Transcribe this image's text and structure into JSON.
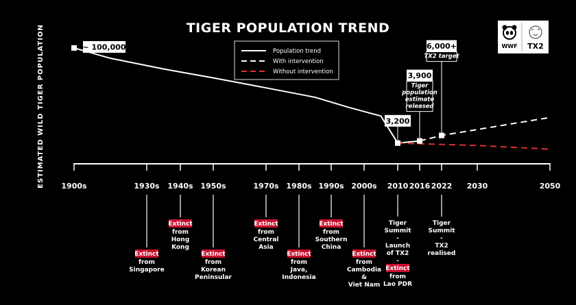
{
  "chart_data": {
    "type": "line",
    "title": "TIGER POPULATION TREND",
    "ylabel": "ESTIMATED WILD TIGER POPULATION",
    "x_ticks": [
      "1900s",
      "1930s",
      "1940s",
      "1950s",
      "1970s",
      "1980s",
      "1990s",
      "2000s",
      "2010",
      "2016",
      "2022",
      "2030",
      "2050"
    ],
    "x_tick_years": [
      1900,
      1930,
      1940,
      1950,
      1970,
      1980,
      1990,
      2000,
      2010,
      2016,
      2022,
      2030,
      2050
    ],
    "series": [
      {
        "name": "Population trend",
        "style": "solid",
        "color": "#ffffff",
        "x": [
          1900,
          1915,
          1935,
          1950,
          1970,
          1985,
          1995,
          2005,
          2010,
          2016
        ],
        "y": [
          100000,
          83000,
          67000,
          55000,
          43000,
          33000,
          24000,
          17000,
          3200,
          3900
        ]
      },
      {
        "name": "With intervention",
        "style": "dashed",
        "color": "#ffffff",
        "x": [
          2016,
          2022,
          2050
        ],
        "y": [
          3900,
          6000,
          16000
        ]
      },
      {
        "name": "Without intervention",
        "style": "dashed",
        "color": "#e03030",
        "x": [
          2010,
          2030,
          2050
        ],
        "y": [
          3200,
          2500,
          1600
        ]
      }
    ],
    "callouts": [
      {
        "label": "~ 100,000",
        "x": 1900,
        "y": 100000
      },
      {
        "label": "3,200",
        "x": 2010,
        "y": 3200
      },
      {
        "label": "3,900",
        "sub": [
          "Tiger",
          "population",
          "estimate",
          "released"
        ],
        "x": 2016,
        "y": 3900
      },
      {
        "label": "6,000+",
        "sub": [
          "TX2 target"
        ],
        "x": 2022,
        "y": 6000
      }
    ],
    "events": [
      {
        "x": 1930,
        "extinct": true,
        "lines": [
          "from",
          "Singapore"
        ]
      },
      {
        "x": 1940,
        "extinct": true,
        "lines": [
          "from",
          "Hong",
          "Kong"
        ]
      },
      {
        "x": 1950,
        "extinct": true,
        "lines": [
          "from",
          "Korean",
          "Peninsular"
        ]
      },
      {
        "x": 1970,
        "extinct": true,
        "lines": [
          "from",
          "Central",
          "Asia"
        ]
      },
      {
        "x": 1980,
        "extinct": true,
        "lines": [
          "from",
          "Java,",
          "Indonesia"
        ]
      },
      {
        "x": 1990,
        "extinct": true,
        "lines": [
          "from",
          "Southern",
          "China"
        ]
      },
      {
        "x": 2000,
        "extinct": true,
        "lines": [
          "from",
          "Cambodia",
          "&",
          "Viet Nam"
        ]
      },
      {
        "x": 2010,
        "extinct": false,
        "lines": [
          "Tiger",
          "Summit",
          "-",
          "Launch",
          "of TX2",
          "-"
        ],
        "extra_extinct": [
          "from",
          "Lao PDR"
        ]
      },
      {
        "x": 2022,
        "extinct": false,
        "lines": [
          "Tiger",
          "Summit",
          "-",
          "TX2",
          "realised"
        ]
      }
    ],
    "extinct_label": "Extinct",
    "legend": [
      "Population trend",
      "With intervention",
      "Without intervention"
    ],
    "logos": {
      "wwf": "WWF",
      "tx2": "TX2"
    },
    "colors": {
      "accent": "#e03030",
      "badge": "#c8102e"
    }
  }
}
